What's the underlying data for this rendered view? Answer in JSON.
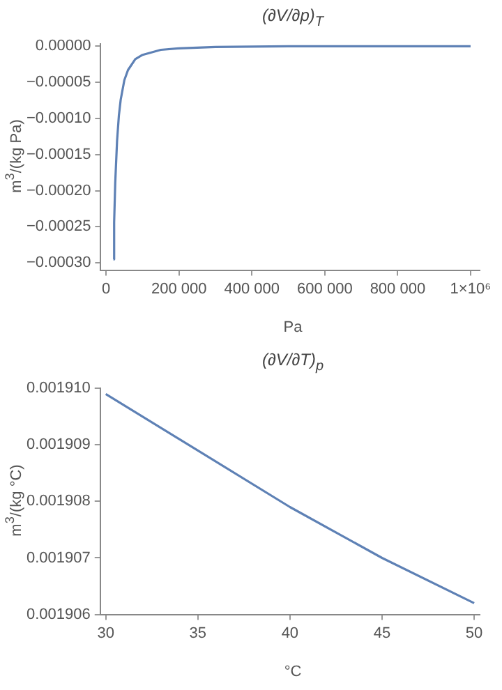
{
  "chart_data": [
    {
      "type": "line",
      "title": "(∂V/∂p)$_{T}$",
      "xlabel": "Pa",
      "ylabel": "m$^{3}$/(kg Pa)",
      "x": [
        20000,
        22000,
        25000,
        30000,
        35000,
        40000,
        50000,
        60000,
        80000,
        100000,
        150000,
        200000,
        300000,
        500000,
        700000,
        1000000
      ],
      "series": [
        {
          "color": "#5e81b5",
          "values": [
            -0.000295,
            -0.000244,
            -0.000189,
            -0.000131,
            -9.6e-05,
            -7.4e-05,
            -4.7e-05,
            -3.3e-05,
            -1.8e-05,
            -1.2e-05,
            -5e-06,
            -3e-06,
            -1e-06,
            0,
            0,
            0
          ]
        }
      ],
      "xlim": [
        -15000,
        1025000
      ],
      "ylim": [
        -0.00031,
        3e-06
      ],
      "xticks": [
        0,
        {
          "value": 200000,
          "label": "200 000"
        },
        {
          "value": 400000,
          "label": "400 000"
        },
        {
          "value": 600000,
          "label": "600 000"
        },
        {
          "value": 800000,
          "label": "800 000"
        },
        {
          "value": 1000000,
          "label": "1×10⁶"
        }
      ],
      "yticks": [
        {
          "value": 0,
          "label": "0.00000"
        },
        {
          "value": -5e-05,
          "label": "−0.00005"
        },
        {
          "value": -0.0001,
          "label": "−0.00010"
        },
        {
          "value": -0.00015,
          "label": "−0.00015"
        },
        {
          "value": -0.0002,
          "label": "−0.00020"
        },
        {
          "value": -0.00025,
          "label": "−0.00025"
        },
        {
          "value": -0.0003,
          "label": "−0.00030"
        }
      ],
      "grid": false,
      "legend": false,
      "marker": "none",
      "line_style": "solid"
    },
    {
      "type": "line",
      "title": "(∂V/∂T)$_{p}$",
      "xlabel": "°C",
      "ylabel": "m$^{3}$/(kg °C)",
      "x": [
        30,
        35,
        40,
        45,
        50
      ],
      "series": [
        {
          "color": "#5e81b5",
          "values": [
            0.0019099,
            0.0019089,
            0.0019079,
            0.001907,
            0.0019062
          ]
        }
      ],
      "xlim": [
        29.7,
        50.3
      ],
      "ylim": [
        0.001906,
        0.00191
      ],
      "xticks": [
        30,
        35,
        40,
        45,
        50
      ],
      "yticks": [
        {
          "value": 0.001906,
          "label": "0.001906"
        },
        {
          "value": 0.001907,
          "label": "0.001907"
        },
        {
          "value": 0.001908,
          "label": "0.001908"
        },
        {
          "value": 0.001909,
          "label": "0.001909"
        },
        {
          "value": 0.00191,
          "label": "0.001910"
        }
      ],
      "grid": false,
      "legend": false,
      "marker": "none",
      "line_style": "solid"
    }
  ]
}
